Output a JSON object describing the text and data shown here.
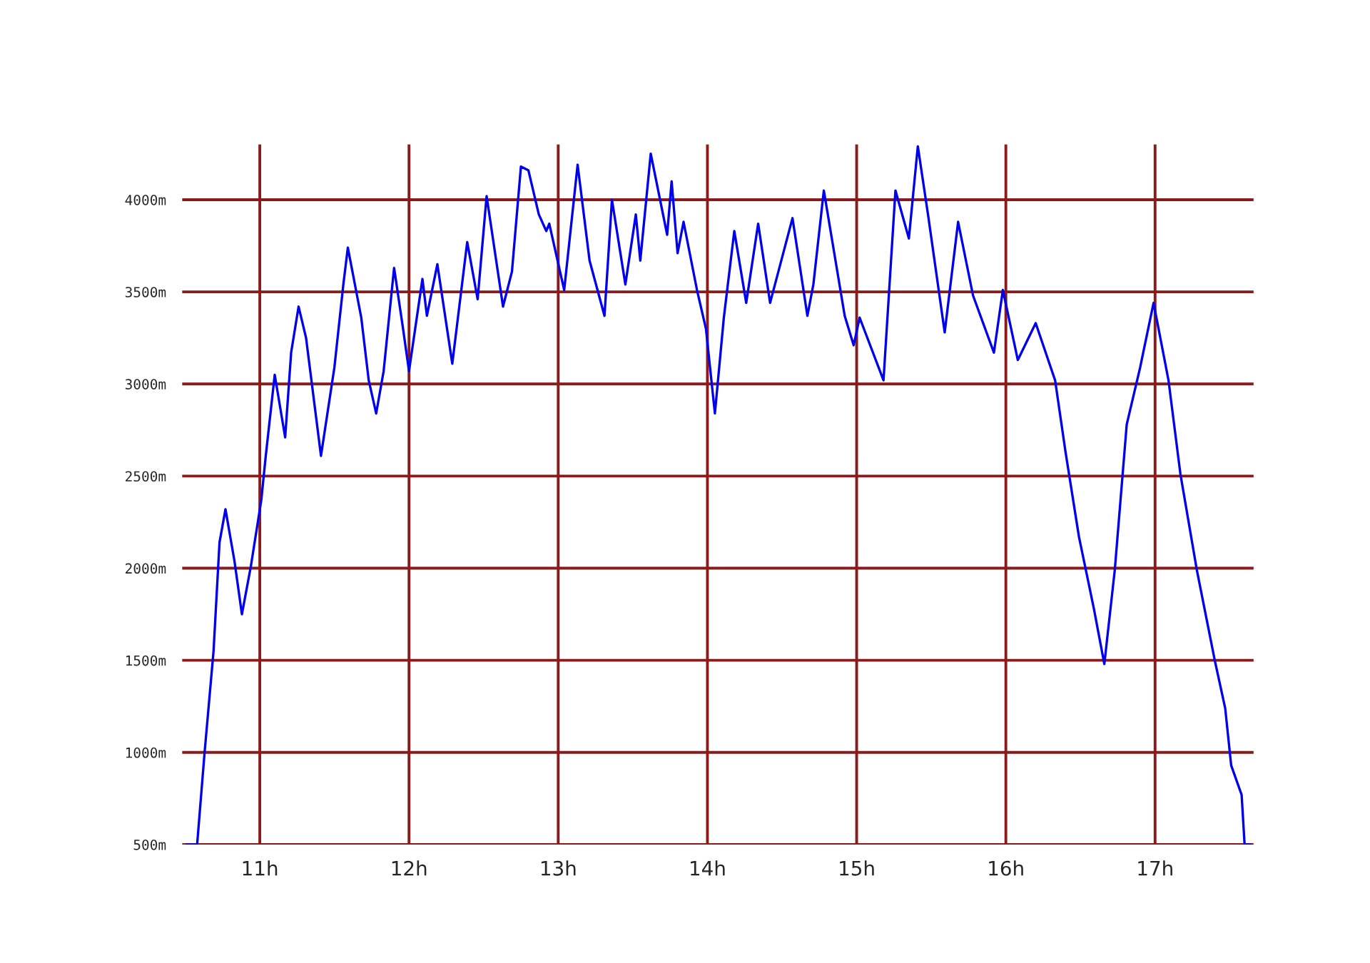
{
  "chart_data": {
    "type": "line",
    "xlim": [
      10.48,
      17.66
    ],
    "ylim": [
      500,
      4300
    ],
    "xticks": [
      {
        "value": 11,
        "label": "11h"
      },
      {
        "value": 12,
        "label": "12h"
      },
      {
        "value": 13,
        "label": "13h"
      },
      {
        "value": 14,
        "label": "14h"
      },
      {
        "value": 15,
        "label": "15h"
      },
      {
        "value": 16,
        "label": "16h"
      },
      {
        "value": 17,
        "label": "17h"
      }
    ],
    "yticks": [
      {
        "value": 500,
        "label": "500m"
      },
      {
        "value": 1000,
        "label": "1000m"
      },
      {
        "value": 1500,
        "label": "1500m"
      },
      {
        "value": 2000,
        "label": "2000m"
      },
      {
        "value": 2500,
        "label": "2500m"
      },
      {
        "value": 3000,
        "label": "3000m"
      },
      {
        "value": 3500,
        "label": "3500m"
      },
      {
        "value": 4000,
        "label": "4000m"
      }
    ],
    "grid": true,
    "marker": "none",
    "line_style": "solid",
    "series": [
      {
        "color": "#0000ee",
        "x": [
          10.51,
          10.58,
          10.63,
          10.69,
          10.73,
          10.77,
          10.83,
          10.88,
          10.94,
          11.01,
          11.04,
          11.1,
          11.17,
          11.21,
          11.26,
          11.31,
          11.41,
          11.5,
          11.56,
          11.59,
          11.68,
          11.73,
          11.78,
          11.83,
          11.9,
          11.96,
          12.0,
          12.09,
          12.12,
          12.19,
          12.29,
          12.39,
          12.46,
          12.52,
          12.63,
          12.69,
          12.75,
          12.8,
          12.87,
          12.92,
          12.94,
          13.04,
          13.13,
          13.21,
          13.31,
          13.36,
          13.45,
          13.52,
          13.55,
          13.62,
          13.73,
          13.76,
          13.8,
          13.84,
          13.93,
          13.99,
          14.05,
          14.11,
          14.18,
          14.26,
          14.34,
          14.42,
          14.57,
          14.67,
          14.71,
          14.78,
          14.92,
          14.98,
          15.02,
          15.18,
          15.26,
          15.35,
          15.41,
          15.48,
          15.59,
          15.68,
          15.78,
          15.92,
          15.98,
          16.08,
          16.2,
          16.33,
          16.4,
          16.49,
          16.59,
          16.66,
          16.73,
          16.81,
          16.9,
          16.99,
          17.09,
          17.17,
          17.28,
          17.4,
          17.47,
          17.51,
          17.58,
          17.6,
          17.64
        ],
        "values": [
          500,
          500,
          1000,
          1550,
          2140,
          2320,
          2040,
          1750,
          2010,
          2370,
          2610,
          3050,
          2710,
          3170,
          3420,
          3250,
          2610,
          3090,
          3540,
          3740,
          3360,
          3020,
          2840,
          3070,
          3630,
          3300,
          3070,
          3570,
          3370,
          3650,
          3110,
          3770,
          3460,
          4020,
          3420,
          3610,
          4180,
          4160,
          3920,
          3830,
          3870,
          3510,
          4190,
          3670,
          3370,
          4000,
          3540,
          3920,
          3670,
          4250,
          3810,
          4100,
          3710,
          3880,
          3510,
          3300,
          2840,
          3360,
          3830,
          3440,
          3870,
          3440,
          3900,
          3370,
          3540,
          4050,
          3370,
          3210,
          3360,
          3020,
          4050,
          3790,
          4290,
          3910,
          3280,
          3880,
          3480,
          3170,
          3510,
          3130,
          3330,
          3020,
          2630,
          2170,
          1780,
          1480,
          1990,
          2780,
          3090,
          3440,
          3020,
          2510,
          1990,
          1500,
          1240,
          930,
          770,
          500,
          500
        ]
      }
    ]
  }
}
